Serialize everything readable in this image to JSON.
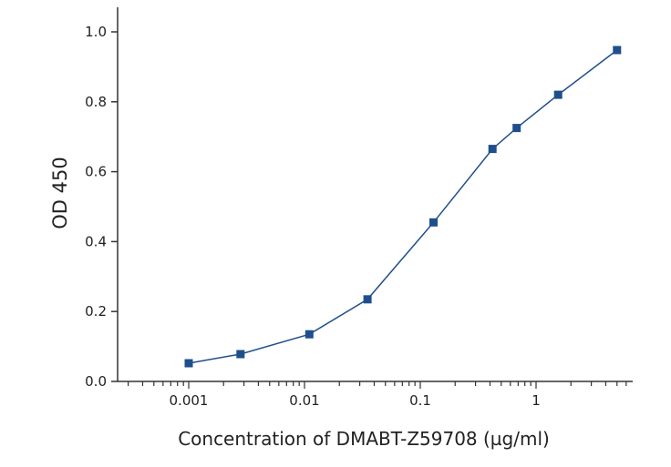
{
  "chart_data": {
    "type": "line",
    "xscale": "log",
    "xlabel": "Concentration of DMABT-Z59708 (µg/ml)",
    "ylabel": "OD 450",
    "xlim": [
      0.0003,
      6
    ],
    "ylim": [
      0,
      1.05
    ],
    "x_ticks": [
      {
        "value": 0.001,
        "label": "0.001"
      },
      {
        "value": 0.01,
        "label": "0.01"
      },
      {
        "value": 0.1,
        "label": "0.1"
      },
      {
        "value": 1,
        "label": "1"
      }
    ],
    "y_ticks": [
      {
        "value": 0.0,
        "label": "0.0"
      },
      {
        "value": 0.2,
        "label": "0.2"
      },
      {
        "value": 0.4,
        "label": "0.4"
      },
      {
        "value": 0.6,
        "label": "0.6"
      },
      {
        "value": 0.8,
        "label": "0.8"
      },
      {
        "value": 1.0,
        "label": "1.0"
      }
    ],
    "series": [
      {
        "name": "DMABT-Z59708",
        "color": "#1f4e8c",
        "x": [
          0.001,
          0.0028,
          0.011,
          0.035,
          0.13,
          0.42,
          0.68,
          1.55,
          5.0
        ],
        "y": [
          0.052,
          0.078,
          0.135,
          0.235,
          0.455,
          0.665,
          0.725,
          0.82,
          0.948
        ]
      }
    ]
  }
}
